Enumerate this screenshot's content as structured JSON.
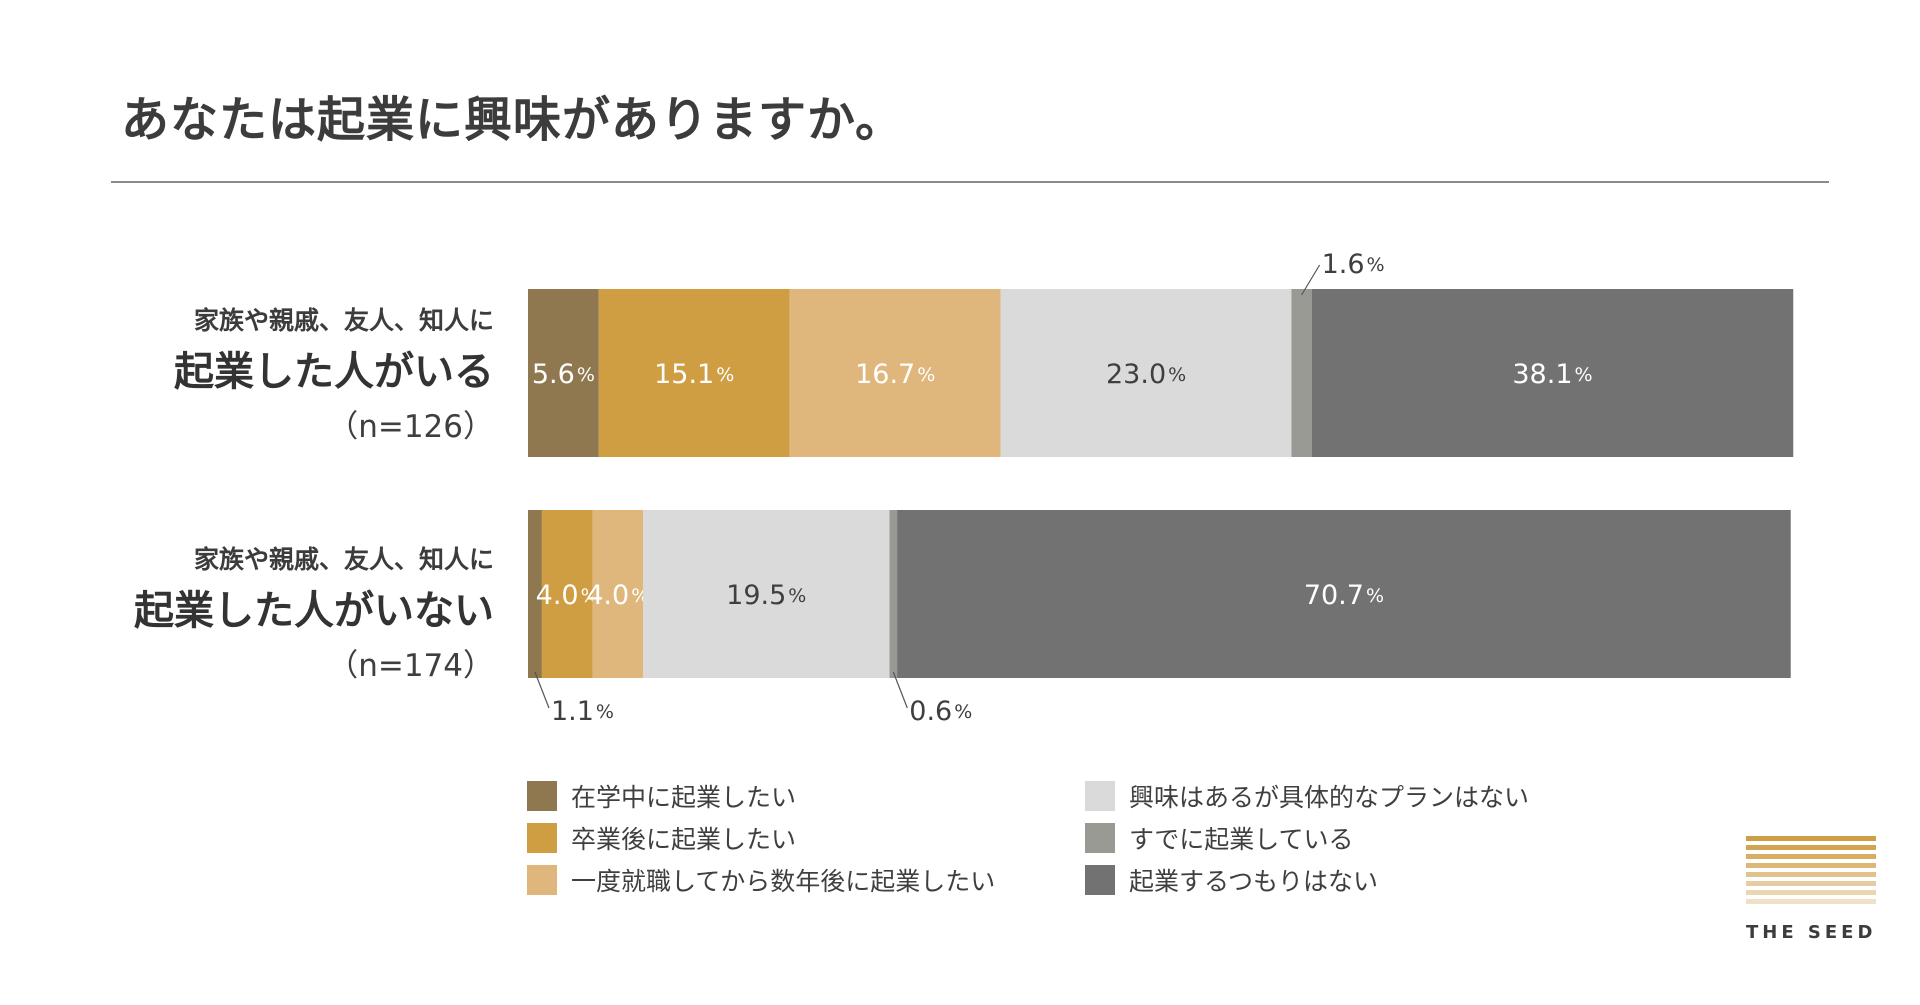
{
  "title": "あなたは起業に興味がありますか。",
  "percent_sign": "%",
  "rows": [
    {
      "line1": "家族や親戚、友人、知人に",
      "line2": "起業した人がいる",
      "line3": "（n=126）"
    },
    {
      "line1": "家族や親戚、友人、知人に",
      "line2": "起業した人がいない",
      "line3": "（n=174）"
    }
  ],
  "legend": [
    {
      "label": "在学中に起業したい",
      "color": "#8f7750"
    },
    {
      "label": "卒業後に起業したい",
      "color": "#cf9d42"
    },
    {
      "label": "一度就職してから数年後に起業したい",
      "color": "#dfb77c"
    },
    {
      "label": "興味はあるが具体的なプランはない",
      "color": "#dadada"
    },
    {
      "label": "すでに起業している",
      "color": "#999a94"
    },
    {
      "label": "起業するつもりはない",
      "color": "#727272"
    }
  ],
  "logo": {
    "text": "THE SEED",
    "stripe_colors": [
      "#cf9d42",
      "#d3a552",
      "#d8ae64",
      "#dcb878",
      "#e1c28c",
      "#e6cca0",
      "#ebd6b4",
      "#f0e0c8"
    ]
  },
  "chart_data": {
    "type": "bar",
    "orientation": "horizontal",
    "stacked": true,
    "categories": [
      "起業した人がいる（n=126）",
      "起業した人がいない（n=174）"
    ],
    "xlim": [
      0,
      100
    ],
    "series": [
      {
        "name": "在学中に起業したい",
        "color": "#8f7750",
        "values": [
          5.6,
          1.1
        ],
        "labels": [
          "5.6",
          "1.1"
        ]
      },
      {
        "name": "卒業後に起業したい",
        "color": "#cf9d42",
        "values": [
          15.1,
          4.0
        ],
        "labels": [
          "15.1",
          "4.0"
        ]
      },
      {
        "name": "一度就職してから数年後に起業したい",
        "color": "#dfb77c",
        "values": [
          16.7,
          4.0
        ],
        "labels": [
          "16.7",
          "4.0"
        ]
      },
      {
        "name": "興味はあるが具体的なプランはない",
        "color": "#dadada",
        "values": [
          23.0,
          19.5
        ],
        "labels": [
          "23.0",
          "19.5"
        ]
      },
      {
        "name": "すでに起業している",
        "color": "#999a94",
        "values": [
          1.6,
          0.6
        ],
        "labels": [
          "1.6",
          "0.6"
        ]
      },
      {
        "name": "起業するつもりはない",
        "color": "#727272",
        "values": [
          38.1,
          70.7
        ],
        "labels": [
          "38.1",
          "70.7"
        ]
      }
    ],
    "legend": "bottom"
  }
}
